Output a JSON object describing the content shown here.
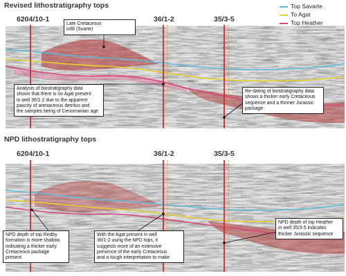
{
  "panels": [
    {
      "title": "Revised lithostratigraphy tops",
      "wells": [
        "6204/10-1",
        "36/1-2",
        "35/3-5"
      ],
      "annotations": [
        {
          "lines": [
            "Late Cretaceous",
            "infill (Svarte)"
          ]
        },
        {
          "lines": [
            "Analysis of biostratigraphy data",
            "shows that there is no Agat present",
            "in well 36/1-2 due to the apparent",
            "paucity of arenaceous detritus and",
            "the samples being of Cenomanian age"
          ]
        },
        {
          "lines": [
            "Re-dating of biostratigraphy data",
            "shows a thicker early Cretaceous",
            "sequence and a thinner Jurassic",
            "package"
          ]
        }
      ]
    },
    {
      "title": "NPD lithostratigraphy tops",
      "wells": [
        "6204/10-1",
        "36/1-2",
        "35/3-5"
      ],
      "annotations": [
        {
          "lines": [
            "NPD depth of top Redby",
            "formation is more shallow,",
            "indicating a thicker early",
            "Cretaceous package present"
          ]
        },
        {
          "lines": [
            "With the Agat present in well",
            "36/1-2 using the NPD tops, it",
            "suggests more of an extensive",
            "presence of the early Cretaceous",
            "and a tough interpretation to make"
          ]
        },
        {
          "lines": [
            "NPD depth of top  Heather",
            "in well 35/3-5 indicates",
            "thicker Jurassic sequence"
          ]
        }
      ]
    }
  ],
  "legend": [
    {
      "label": "Top Savarte",
      "color": "#5bbbd9"
    },
    {
      "label": "To Agat",
      "color": "#e8d02a"
    },
    {
      "label": "Top Heather",
      "color": "#d9467a"
    }
  ],
  "colors": {
    "seismic_dark": "#3a3a3a",
    "seismic_light": "#d4d4d4",
    "well": "#d42b2b",
    "infill": "#b03232",
    "orange_dashed": "#e59a3a"
  }
}
